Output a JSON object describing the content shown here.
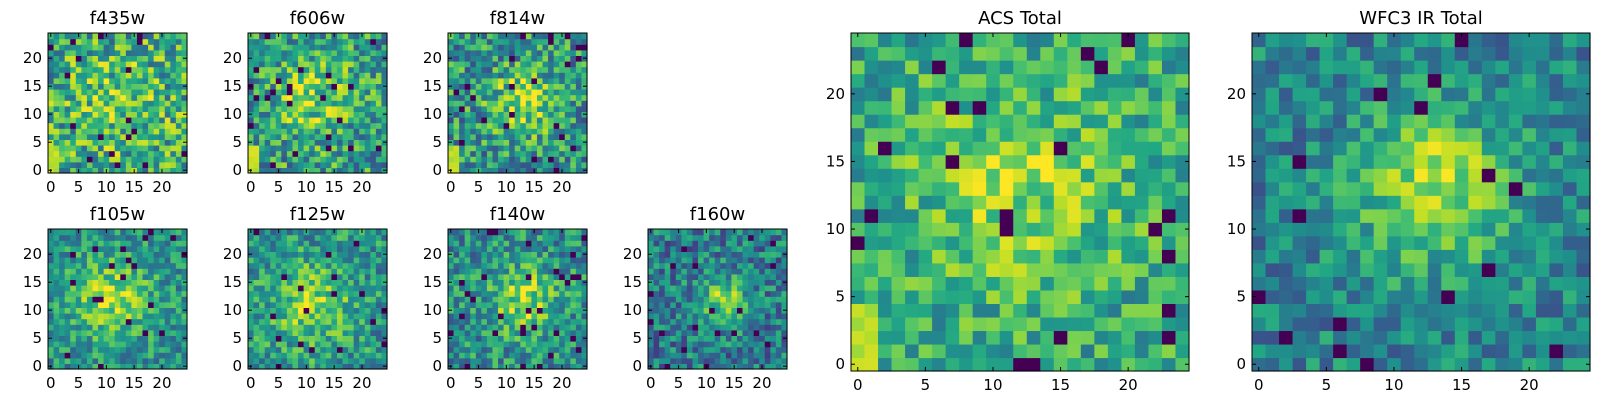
{
  "chart_data": [
    {
      "type": "heatmap",
      "id": "f435w",
      "title": "f435w",
      "grid": 25,
      "xlim": [
        -0.5,
        24.5
      ],
      "ylim": [
        -0.5,
        24.5
      ],
      "xticks": [
        0,
        5,
        10,
        15,
        20
      ],
      "yticks": [
        0,
        5,
        10,
        15,
        20
      ],
      "colormap": "viridis",
      "source": {
        "cx": 12,
        "cy": 12,
        "sigma": 6,
        "amp": 0.15,
        "noise": 0.32,
        "base": 0.6
      },
      "corner_hot": true,
      "seed": 11
    },
    {
      "type": "heatmap",
      "id": "f606w",
      "title": "f606w",
      "grid": 25,
      "xlim": [
        -0.5,
        24.5
      ],
      "ylim": [
        -0.5,
        24.5
      ],
      "xticks": [
        0,
        5,
        10,
        15,
        20
      ],
      "yticks": [
        0,
        5,
        10,
        15,
        20
      ],
      "colormap": "viridis",
      "source": {
        "cx": 11,
        "cy": 13,
        "sigma": 5,
        "amp": 0.25,
        "noise": 0.3,
        "base": 0.55
      },
      "corner_hot": true,
      "seed": 23
    },
    {
      "type": "heatmap",
      "id": "f814w",
      "title": "f814w",
      "grid": 25,
      "xlim": [
        -0.5,
        24.5
      ],
      "ylim": [
        -0.5,
        24.5
      ],
      "xticks": [
        0,
        5,
        10,
        15,
        20
      ],
      "yticks": [
        0,
        5,
        10,
        15,
        20
      ],
      "colormap": "viridis",
      "source": {
        "cx": 13,
        "cy": 12,
        "sigma": 4,
        "amp": 0.35,
        "noise": 0.3,
        "base": 0.52
      },
      "corner_hot": true,
      "seed": 37
    },
    {
      "type": "heatmap",
      "id": "f105w",
      "title": "f105w",
      "grid": 25,
      "xlim": [
        -0.5,
        24.5
      ],
      "ylim": [
        -0.5,
        24.5
      ],
      "xticks": [
        0,
        5,
        10,
        15,
        20
      ],
      "yticks": [
        0,
        5,
        10,
        15,
        20
      ],
      "colormap": "viridis",
      "source": {
        "cx": 11,
        "cy": 12,
        "sigma": 5,
        "amp": 0.35,
        "noise": 0.22,
        "base": 0.5
      },
      "corner_hot": false,
      "seed": 41
    },
    {
      "type": "heatmap",
      "id": "f125w",
      "title": "f125w",
      "grid": 25,
      "xlim": [
        -0.5,
        24.5
      ],
      "ylim": [
        -0.5,
        24.5
      ],
      "xticks": [
        0,
        5,
        10,
        15,
        20
      ],
      "yticks": [
        0,
        5,
        10,
        15,
        20
      ],
      "colormap": "viridis",
      "source": {
        "cx": 11,
        "cy": 11,
        "sigma": 5,
        "amp": 0.3,
        "noise": 0.24,
        "base": 0.52
      },
      "corner_hot": false,
      "seed": 53
    },
    {
      "type": "heatmap",
      "id": "f140w",
      "title": "f140w",
      "grid": 25,
      "xlim": [
        -0.5,
        24.5
      ],
      "ylim": [
        -0.5,
        24.5
      ],
      "xticks": [
        0,
        5,
        10,
        15,
        20
      ],
      "yticks": [
        0,
        5,
        10,
        15,
        20
      ],
      "colormap": "viridis",
      "source": {
        "cx": 13,
        "cy": 12,
        "sigma": 4,
        "amp": 0.35,
        "noise": 0.25,
        "base": 0.5
      },
      "corner_hot": false,
      "seed": 67
    },
    {
      "type": "heatmap",
      "id": "f160w",
      "title": "f160w",
      "grid": 25,
      "xlim": [
        -0.5,
        24.5
      ],
      "ylim": [
        -0.5,
        24.5
      ],
      "xticks": [
        0,
        5,
        10,
        15,
        20
      ],
      "yticks": [
        0,
        5,
        10,
        15,
        20
      ],
      "colormap": "viridis",
      "source": {
        "cx": 13,
        "cy": 12,
        "sigma": 3,
        "amp": 0.4,
        "noise": 0.25,
        "base": 0.42
      },
      "corner_hot": false,
      "seed": 79
    },
    {
      "type": "heatmap",
      "id": "acs",
      "title": "ACS Total",
      "grid": 25,
      "xlim": [
        -0.5,
        24.5
      ],
      "ylim": [
        -0.5,
        24.5
      ],
      "xticks": [
        0,
        5,
        10,
        15,
        20
      ],
      "yticks": [
        0,
        5,
        10,
        15,
        20
      ],
      "colormap": "viridis",
      "source": {
        "cx": 12,
        "cy": 13,
        "sigma": 5,
        "amp": 0.25,
        "noise": 0.22,
        "base": 0.6
      },
      "corner_hot": true,
      "seed": 97
    },
    {
      "type": "heatmap",
      "id": "wfc3",
      "title": "WFC3 IR Total",
      "grid": 25,
      "xlim": [
        -0.5,
        24.5
      ],
      "ylim": [
        -0.5,
        24.5
      ],
      "xticks": [
        0,
        5,
        10,
        15,
        20
      ],
      "yticks": [
        0,
        5,
        10,
        15,
        20
      ],
      "colormap": "viridis",
      "source": {
        "cx": 13,
        "cy": 13,
        "sigma": 4,
        "amp": 0.45,
        "noise": 0.2,
        "base": 0.45
      },
      "corner_hot": false,
      "seed": 113
    }
  ]
}
